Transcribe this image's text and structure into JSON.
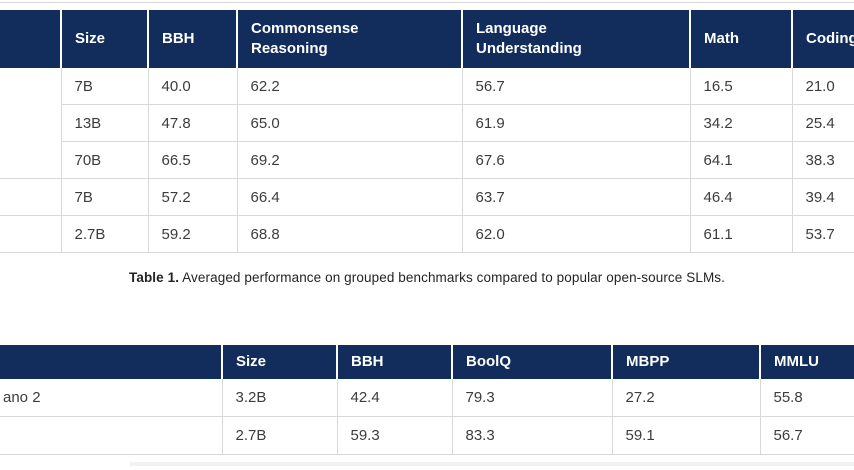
{
  "colors": {
    "header_bg": "#122d5b",
    "border": "#d8d8d8",
    "cell_text": "#3c3c3c",
    "header_text": "#ffffff"
  },
  "table1": {
    "header": [
      "",
      "Size",
      "BBH",
      "Commonsense\nReasoning",
      "Language\nUnderstanding",
      "Math",
      "Coding"
    ],
    "rows": [
      {
        "cells": [
          {
            "text": "",
            "col": "model",
            "rowspan": 3
          },
          {
            "text": "7B"
          },
          {
            "text": "40.0"
          },
          {
            "text": "62.2"
          },
          {
            "text": "56.7"
          },
          {
            "text": "16.5"
          },
          {
            "text": "21.0"
          }
        ]
      },
      {
        "cells": [
          {
            "text": "13B"
          },
          {
            "text": "47.8"
          },
          {
            "text": "65.0"
          },
          {
            "text": "61.9"
          },
          {
            "text": "34.2"
          },
          {
            "text": "25.4"
          }
        ]
      },
      {
        "cells": [
          {
            "text": "70B"
          },
          {
            "text": "66.5"
          },
          {
            "text": "69.2"
          },
          {
            "text": "67.6"
          },
          {
            "text": "64.1"
          },
          {
            "text": "38.3"
          }
        ]
      },
      {
        "cells": [
          {
            "text": "",
            "col": "model"
          },
          {
            "text": "7B"
          },
          {
            "text": "57.2"
          },
          {
            "text": "66.4"
          },
          {
            "text": "63.7"
          },
          {
            "text": "46.4"
          },
          {
            "text": "39.4"
          }
        ]
      },
      {
        "cells": [
          {
            "text": "",
            "col": "model"
          },
          {
            "text": "2.7B"
          },
          {
            "text": "59.2"
          },
          {
            "text": "68.8"
          },
          {
            "text": "62.0"
          },
          {
            "text": "61.1"
          },
          {
            "text": "53.7"
          }
        ]
      }
    ]
  },
  "caption": {
    "label": "Table 1.",
    "text": " Averaged performance on grouped benchmarks compared to popular open-source SLMs."
  },
  "table2": {
    "header": [
      "",
      "Size",
      "BBH",
      "BoolQ",
      "MBPP",
      "MMLU"
    ],
    "rows": [
      {
        "cells": [
          {
            "text": "ano 2",
            "col": "model"
          },
          {
            "text": "3.2B"
          },
          {
            "text": "42.4"
          },
          {
            "text": "79.3"
          },
          {
            "text": "27.2"
          },
          {
            "text": "55.8"
          }
        ]
      },
      {
        "cells": [
          {
            "text": "",
            "col": "model"
          },
          {
            "text": "2.7B"
          },
          {
            "text": "59.3"
          },
          {
            "text": "83.3"
          },
          {
            "text": "59.1"
          },
          {
            "text": "56.7"
          }
        ]
      }
    ]
  }
}
